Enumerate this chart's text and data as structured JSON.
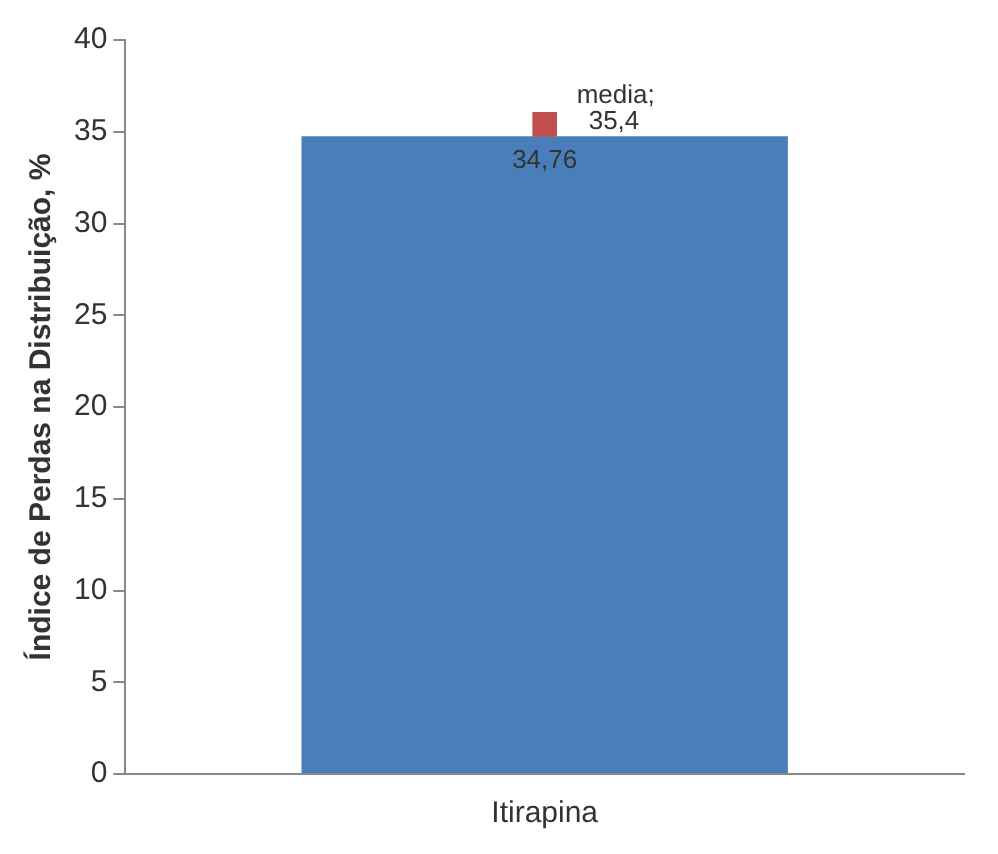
{
  "chart_data": {
    "type": "bar",
    "ylabel": "Índice de Perdas na Distribuição, %",
    "categories": [
      "Itirapina"
    ],
    "series": [
      {
        "color": "#4a7ebb",
        "values": [
          34.76
        ],
        "value_labels": [
          "34,76"
        ]
      },
      {
        "type": "scatter",
        "name": "media;",
        "color": "#c0504d",
        "x": [
          "Itirapina"
        ],
        "values": [
          35.4
        ],
        "value_labels": [
          "35,4"
        ]
      }
    ],
    "ylim": [
      0,
      40
    ],
    "yticks": [
      0,
      5,
      10,
      15,
      20,
      25,
      30,
      35,
      40
    ],
    "marker": "square",
    "legend": false
  }
}
